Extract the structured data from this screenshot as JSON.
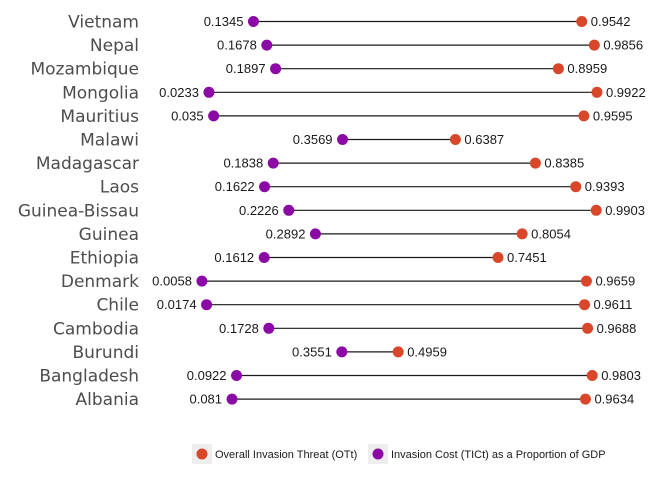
{
  "chart_data": {
    "type": "dumbbell",
    "xlim": [
      0,
      1
    ],
    "grid": false,
    "legend_position": "bottom",
    "legend": [
      {
        "key": "otti",
        "label": "Overall Invasion Threat (OTt)",
        "color": "#d9472b"
      },
      {
        "key": "tict",
        "label": "Invasion Cost (TICt) as a Proportion of GDP",
        "color": "#8b0aa5"
      }
    ],
    "categories": [
      "Vietnam",
      "Nepal",
      "Mozambique",
      "Mongolia",
      "Mauritius",
      "Malawi",
      "Madagascar",
      "Laos",
      "Guinea-Bissau",
      "Guinea",
      "Ethiopia",
      "Denmark",
      "Chile",
      "Cambodia",
      "Burundi",
      "Bangladesh",
      "Albania"
    ],
    "series": [
      {
        "name": "Invasion Cost (TICt) as a Proportion of GDP",
        "color": "#8b0aa5",
        "values": [
          "0.1345",
          "0.1678",
          "0.1897",
          "0.0233",
          "0.035",
          "0.3569",
          "0.1838",
          "0.1622",
          "0.2226",
          "0.2892",
          "0.1612",
          "0.0058",
          "0.0174",
          "0.1728",
          "0.3551",
          "0.0922",
          "0.081"
        ]
      },
      {
        "name": "Overall Invasion Threat (OTt)",
        "color": "#d9472b",
        "values": [
          "0.9542",
          "0.9856",
          "0.8959",
          "0.9922",
          "0.9595",
          "0.6387",
          "0.8385",
          "0.9393",
          "0.9903",
          "0.8054",
          "0.7451",
          "0.9659",
          "0.9611",
          "0.9688",
          "0.4959",
          "0.9803",
          "0.9634"
        ]
      }
    ]
  }
}
